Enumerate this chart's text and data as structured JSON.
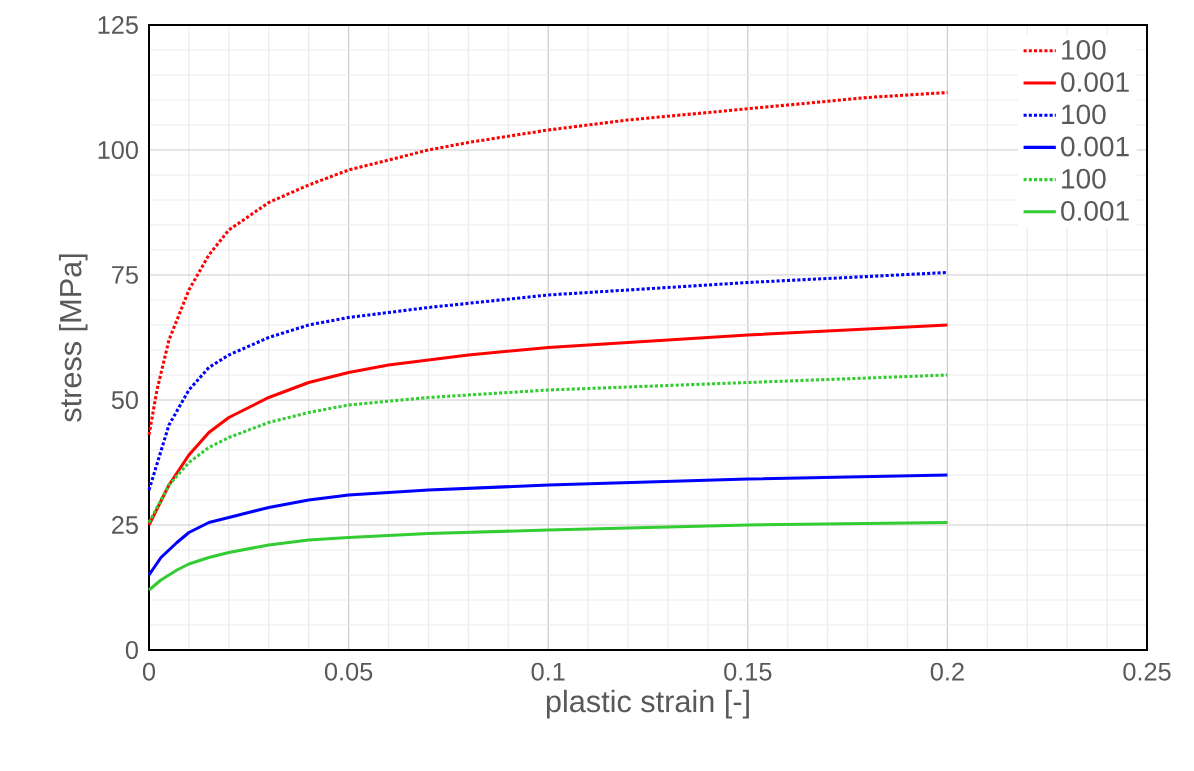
{
  "chart_data": {
    "type": "line",
    "xlabel": "plastic strain [-]",
    "ylabel": "stress [MPa]",
    "xlim": [
      0,
      0.25
    ],
    "ylim": [
      0,
      125
    ],
    "xticks": [
      0,
      0.05,
      0.1,
      0.15,
      0.2,
      0.25
    ],
    "yticks": [
      0,
      25,
      50,
      75,
      100,
      125
    ],
    "grid": true,
    "legend": "top right",
    "series": [
      {
        "name": "100",
        "color": "#ff0000",
        "line_style": "dotted",
        "x": [
          0,
          0.002,
          0.005,
          0.01,
          0.015,
          0.02,
          0.03,
          0.04,
          0.05,
          0.06,
          0.07,
          0.08,
          0.1,
          0.12,
          0.14,
          0.16,
          0.18,
          0.2
        ],
        "values": [
          43,
          52,
          62,
          72,
          79,
          84,
          89.5,
          93,
          96,
          98,
          100,
          101.5,
          104,
          106,
          107.5,
          109,
          110.5,
          111.5
        ]
      },
      {
        "name": "0.001",
        "color": "#ff0000",
        "line_style": "solid",
        "x": [
          0,
          0.005,
          0.01,
          0.015,
          0.02,
          0.03,
          0.04,
          0.05,
          0.06,
          0.08,
          0.1,
          0.12,
          0.15,
          0.2
        ],
        "values": [
          25,
          33,
          39,
          43.5,
          46.5,
          50.5,
          53.5,
          55.5,
          57,
          59,
          60.5,
          61.5,
          63,
          65
        ]
      },
      {
        "name": "100",
        "color": "#0000ff",
        "line_style": "dotted",
        "x": [
          0,
          0.005,
          0.01,
          0.015,
          0.02,
          0.03,
          0.04,
          0.05,
          0.07,
          0.1,
          0.15,
          0.2
        ],
        "values": [
          32,
          45,
          52,
          56.5,
          59,
          62.5,
          65,
          66.5,
          68.5,
          71,
          73.5,
          75.5
        ]
      },
      {
        "name": "0.001",
        "color": "#0000ff",
        "line_style": "solid",
        "x": [
          0,
          0.003,
          0.007,
          0.01,
          0.015,
          0.02,
          0.03,
          0.04,
          0.05,
          0.07,
          0.1,
          0.15,
          0.2
        ],
        "values": [
          15,
          18.5,
          21.5,
          23.5,
          25.5,
          26.5,
          28.5,
          30,
          31,
          32,
          33,
          34.2,
          35
        ]
      },
      {
        "name": "100",
        "color": "#33cc33",
        "line_style": "dotted",
        "x": [
          0,
          0.005,
          0.01,
          0.015,
          0.02,
          0.03,
          0.04,
          0.05,
          0.07,
          0.1,
          0.15,
          0.2
        ],
        "values": [
          25.5,
          33,
          37.5,
          40.5,
          42.5,
          45.5,
          47.5,
          49,
          50.5,
          52,
          53.5,
          55
        ]
      },
      {
        "name": "0.001",
        "color": "#33cc33",
        "line_style": "solid",
        "x": [
          0,
          0.003,
          0.007,
          0.01,
          0.015,
          0.02,
          0.03,
          0.04,
          0.05,
          0.07,
          0.1,
          0.15,
          0.2
        ],
        "values": [
          12,
          14,
          16,
          17.2,
          18.5,
          19.5,
          21,
          22,
          22.5,
          23.3,
          24,
          25,
          25.5
        ]
      }
    ]
  }
}
